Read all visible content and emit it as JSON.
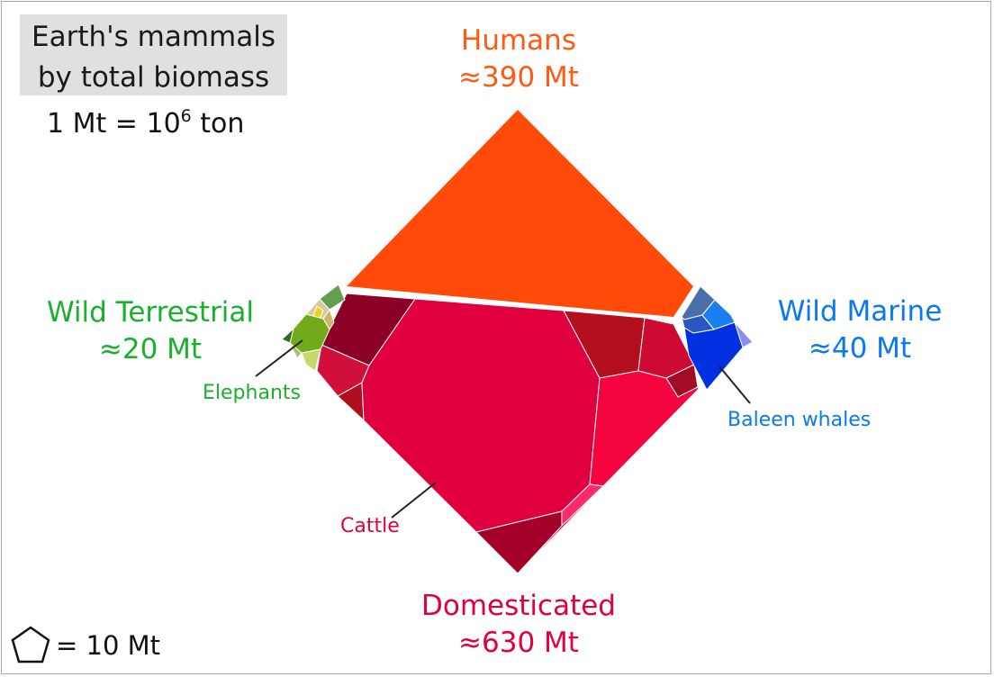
{
  "title": "Earth's mammals\nby total biomass",
  "unit_note": {
    "prefix": "1 Mt = 10",
    "exponent": "6",
    "suffix": " ton"
  },
  "scale_key": {
    "icon": "pentagon-icon",
    "label": "= 10 Mt"
  },
  "categories": {
    "humans": {
      "name": "Humans",
      "value": "≈390 Mt",
      "color": "#ff4a0a"
    },
    "domesticated": {
      "name": "Domesticated",
      "value": "≈630 Mt",
      "color": "#e0003f"
    },
    "wild_terrestrial": {
      "name": "Wild Terrestrial",
      "value": "≈20 Mt",
      "color": "#19b02e"
    },
    "wild_marine": {
      "name": "Wild Marine",
      "value": "≈40 Mt",
      "color": "#0a78ee"
    }
  },
  "callouts": {
    "elephants": {
      "label": "Elephants",
      "color": "#19b02e"
    },
    "cattle": {
      "label": "Cattle",
      "color": "#e0003f"
    },
    "baleen_whales": {
      "label": "Baleen whales",
      "color": "#0a78ee"
    }
  }
}
